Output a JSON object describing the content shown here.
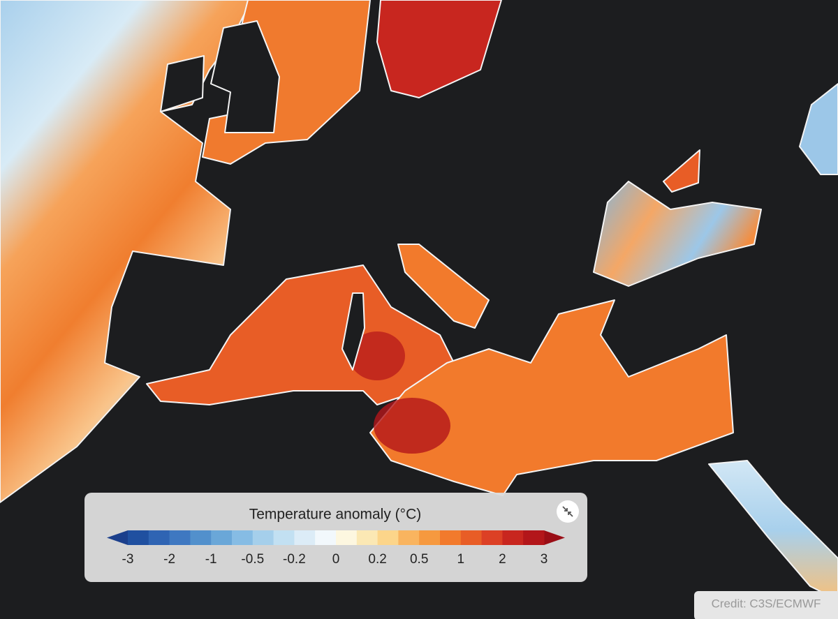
{
  "legend": {
    "title": "Temperature anomaly (°C)",
    "ticks": [
      -3,
      -2,
      -1,
      -0.5,
      -0.2,
      0,
      0.2,
      0.5,
      1,
      2,
      3
    ],
    "colors": [
      "#1b3f8c",
      "#2050a0",
      "#2f64b3",
      "#3f78c1",
      "#5290cc",
      "#6aa7d8",
      "#86bce4",
      "#a5cfeb",
      "#c2e0f2",
      "#dcecf7",
      "#f2f8fc",
      "#fdf7e0",
      "#fbe8b4",
      "#fcd58a",
      "#f9b45f",
      "#f6993f",
      "#f27a2c",
      "#e85d26",
      "#dc4025",
      "#c8261f",
      "#b3161a",
      "#9a0e16"
    ]
  },
  "credit": "Credit: C3S/ECMWF"
}
